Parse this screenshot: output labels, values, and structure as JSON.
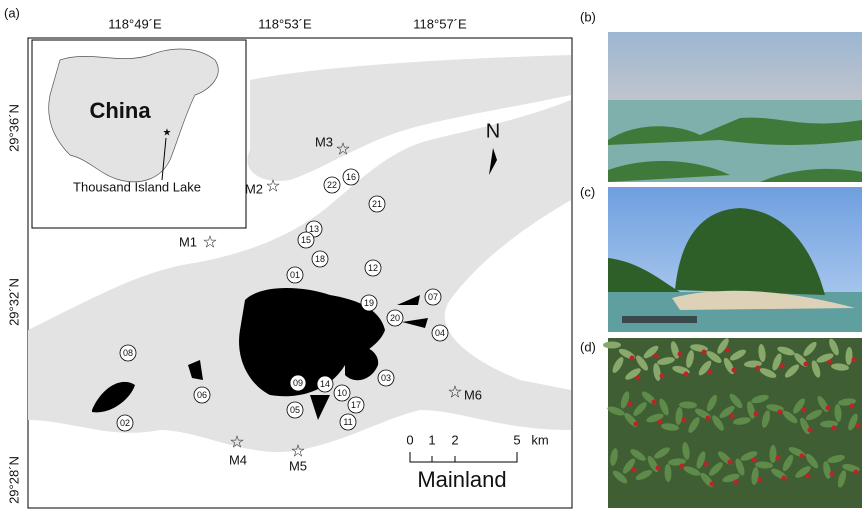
{
  "panel_a": {
    "label": "(a)",
    "lon_ticks": [
      "118°49´E",
      "118°53´E",
      "118°57´E"
    ],
    "lat_ticks": [
      "29°36´N",
      "29°32´N",
      "29°28´N"
    ],
    "inset": {
      "country": "China",
      "site": "Thousand Island Lake"
    },
    "north": "N",
    "stations": [
      "M1",
      "M2",
      "M3",
      "M4",
      "M5",
      "M6"
    ],
    "islands": [
      "01",
      "02",
      "03",
      "04",
      "05",
      "06",
      "07",
      "08",
      "09",
      "10",
      "11",
      "12",
      "13",
      "14",
      "15",
      "16",
      "17",
      "18",
      "19",
      "20",
      "21",
      "22"
    ],
    "scale": {
      "ticks": [
        "0",
        "1",
        "2",
        "5"
      ],
      "unit": "km"
    },
    "mainland": "Mainland"
  },
  "panel_b": {
    "label": "(b)"
  },
  "panel_c": {
    "label": "(c)"
  },
  "panel_d": {
    "label": "(d)"
  }
}
